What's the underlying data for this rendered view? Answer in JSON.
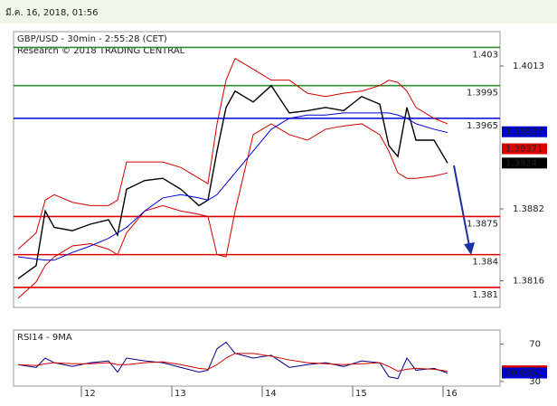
{
  "header": {
    "timestamp": "มี.ค. 16, 2018, 01:56"
  },
  "chart_data": [
    {
      "type": "line",
      "title": "GBP/USD - 30min - 2:55:28 (CET)",
      "subtitle": "Research © 2018 TRADING CENTRAL",
      "x": [
        11.3,
        11.5,
        11.6,
        11.7,
        11.9,
        12.1,
        12.3,
        12.4,
        12.5,
        12.7,
        12.9,
        13.1,
        13.3,
        13.4,
        13.5,
        13.6,
        13.7,
        13.9,
        14.1,
        14.3,
        14.5,
        14.7,
        14.9,
        15.1,
        15.3,
        15.4,
        15.5,
        15.6,
        15.7,
        15.9,
        16.05
      ],
      "series": [
        {
          "color": "#000000",
          "values": [
            1.3818,
            1.383,
            1.388,
            1.3865,
            1.3862,
            1.3868,
            1.3872,
            1.3858,
            1.39,
            1.3908,
            1.391,
            1.39,
            1.3885,
            1.389,
            1.3935,
            1.3975,
            1.399,
            1.398,
            1.3995,
            1.397,
            1.3972,
            1.3975,
            1.3972,
            1.3985,
            1.3978,
            1.394,
            1.393,
            1.3975,
            1.3945,
            1.3945,
            1.3924
          ]
        },
        {
          "color": "#cc0000",
          "values": [
            1.3845,
            1.386,
            1.389,
            1.3895,
            1.3888,
            1.3885,
            1.3885,
            1.389,
            1.3925,
            1.3925,
            1.3925,
            1.392,
            1.391,
            1.3905,
            1.396,
            1.4,
            1.402,
            1.401,
            1.4,
            1.4,
            1.3988,
            1.3985,
            1.3988,
            1.399,
            1.3995,
            1.4,
            1.3998,
            1.399,
            1.3975,
            1.3965,
            1.396
          ]
        },
        {
          "color": "#cc0000",
          "values": [
            1.38,
            1.3815,
            1.383,
            1.3838,
            1.3848,
            1.385,
            1.3845,
            1.384,
            1.386,
            1.388,
            1.3885,
            1.388,
            1.3877,
            1.3875,
            1.384,
            1.3838,
            1.388,
            1.395,
            1.396,
            1.395,
            1.3945,
            1.3955,
            1.3958,
            1.396,
            1.395,
            1.3935,
            1.3915,
            1.391,
            1.391,
            1.3912,
            1.3915
          ]
        },
        {
          "color": "#0000cc",
          "values": [
            1.3838,
            1.3836,
            1.3835,
            1.3835,
            1.3842,
            1.3848,
            1.3855,
            1.386,
            1.3865,
            1.388,
            1.3892,
            1.3895,
            1.3892,
            1.389,
            1.3895,
            1.3905,
            1.3915,
            1.3935,
            1.3955,
            1.3965,
            1.3968,
            1.3968,
            1.397,
            1.397,
            1.397,
            1.397,
            1.3968,
            1.3965,
            1.396,
            1.3955,
            1.3952
          ]
        }
      ],
      "xlim": [
        11.25,
        16.63
      ],
      "ylim": [
        1.37916,
        1.40445
      ],
      "yticks": [
        1.4013,
        1.3882,
        1.3816
      ],
      "levels": [
        {
          "value": 1.403,
          "color": "#2e8b2e"
        },
        {
          "value": 1.3995,
          "color": "#2e8b2e"
        },
        {
          "value": 1.3965,
          "color": "#0000dd"
        },
        {
          "value": 1.3875,
          "color": "#dd0000"
        },
        {
          "value": 1.384,
          "color": "#dd0000"
        },
        {
          "value": 1.381,
          "color": "#dd0000"
        }
      ],
      "price_labels": [
        {
          "value": 1.39527,
          "color": "#0000cc"
        },
        {
          "value": 1.39371,
          "color": "#dd0000"
        },
        {
          "value": 1.3924,
          "color": "#000000"
        }
      ]
    },
    {
      "type": "line",
      "title": "RSI14 - 9MA",
      "x": [
        11.3,
        11.5,
        11.6,
        11.7,
        11.9,
        12.1,
        12.3,
        12.4,
        12.5,
        12.7,
        12.9,
        13.1,
        13.3,
        13.4,
        13.5,
        13.6,
        13.7,
        13.9,
        14.1,
        14.3,
        14.5,
        14.7,
        14.9,
        15.1,
        15.3,
        15.4,
        15.5,
        15.6,
        15.7,
        15.9,
        16.05
      ],
      "series": [
        {
          "color": "#000080",
          "values": [
            48,
            45,
            55,
            50,
            46,
            50,
            52,
            40,
            55,
            52,
            50,
            45,
            40,
            42,
            65,
            72,
            60,
            55,
            58,
            45,
            48,
            50,
            46,
            52,
            50,
            35,
            33,
            55,
            42,
            44,
            39
          ]
        },
        {
          "color": "#cc0000",
          "values": [
            48,
            47,
            49,
            50,
            49,
            49,
            50,
            48,
            48,
            50,
            51,
            48,
            44,
            43,
            48,
            55,
            60,
            60,
            57,
            53,
            50,
            49,
            48,
            49,
            50,
            46,
            41,
            43,
            44,
            43,
            41
          ]
        }
      ],
      "xlim": [
        11.25,
        16.63
      ],
      "xticks": [
        12,
        13,
        14,
        15,
        16
      ],
      "ylim": [
        25,
        85
      ],
      "yticks": [
        70,
        30
      ],
      "price_labels": [
        {
          "value": 41.3712,
          "color": "#dd0000"
        },
        {
          "value": 39.0351,
          "color": "#0000cc"
        }
      ]
    }
  ]
}
